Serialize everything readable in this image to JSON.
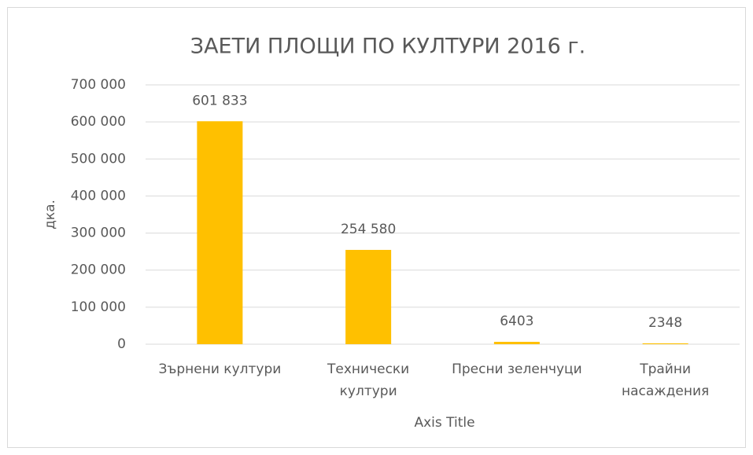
{
  "chart_data": {
    "type": "bar",
    "title": "ЗАЕТИ ПЛОЩИ ПО КУЛТУРИ  2016 г.",
    "x_label": "Axis Title",
    "y_label": "дка.",
    "categories": [
      "Зърнени култури",
      "Технически\nкултури",
      "Пресни зеленчуци",
      "Трайни\nнасаждения"
    ],
    "values": [
      601833,
      254580,
      6403,
      2348
    ],
    "value_labels": [
      "601 833",
      "254 580",
      "6403",
      "2348"
    ],
    "color": "#ffc000",
    "ylim": [
      0,
      700000
    ],
    "yticks": [
      0,
      {
        "value": 100000,
        "label": "100 000"
      },
      {
        "value": 200000,
        "label": "200 000"
      },
      {
        "value": 300000,
        "label": "300 000"
      },
      {
        "value": 400000,
        "label": "400 000"
      },
      {
        "value": 500000,
        "label": "500 000"
      },
      {
        "value": 600000,
        "label": "600 000"
      },
      {
        "value": 700000,
        "label": "700 000"
      }
    ],
    "grid": true
  }
}
